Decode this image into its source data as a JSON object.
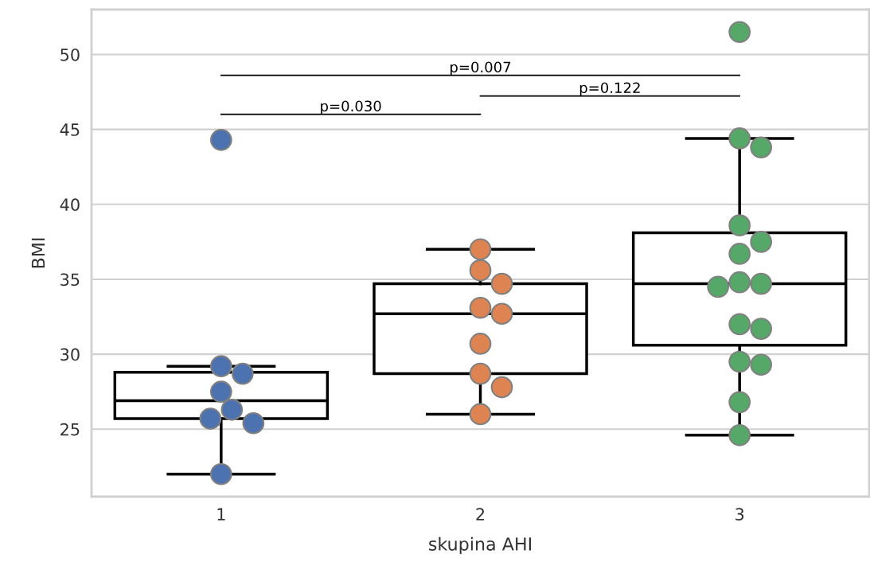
{
  "chart_data": {
    "type": "box",
    "xlabel": "skupina AHI",
    "ylabel": "BMI",
    "categories": [
      "1",
      "2",
      "3"
    ],
    "boxes": [
      {
        "low": 22.0,
        "q1": 25.7,
        "median": 26.9,
        "q3": 28.8,
        "high": 29.2
      },
      {
        "low": 26.0,
        "q1": 28.7,
        "median": 32.7,
        "q3": 34.7,
        "high": 37.0
      },
      {
        "low": 24.6,
        "q1": 30.6,
        "median": 34.7,
        "q3": 38.1,
        "high": 44.4
      }
    ],
    "series": [
      {
        "type": "scatter",
        "color": "#4c72b0",
        "x": [
          "1",
          "1",
          "1",
          "1",
          "1",
          "1",
          "1",
          "1"
        ],
        "values": [
          44.3,
          29.2,
          28.7,
          27.5,
          26.3,
          25.7,
          25.4,
          22.0
        ]
      },
      {
        "type": "scatter",
        "color": "#dd8452",
        "x": [
          "2",
          "2",
          "2",
          "2",
          "2",
          "2",
          "2",
          "2",
          "2"
        ],
        "values": [
          37.0,
          35.6,
          34.7,
          33.1,
          32.7,
          30.7,
          28.7,
          27.8,
          26.0
        ]
      },
      {
        "type": "scatter",
        "color": "#55a868",
        "x": [
          "3",
          "3",
          "3",
          "3",
          "3",
          "3",
          "3",
          "3",
          "3",
          "3",
          "3",
          "3",
          "3",
          "3",
          "3"
        ],
        "values": [
          51.5,
          44.4,
          43.8,
          38.6,
          37.5,
          36.7,
          34.8,
          34.7,
          34.5,
          32.0,
          31.7,
          29.5,
          29.3,
          26.8,
          24.6
        ]
      }
    ],
    "annotations": [
      "p=0.030",
      "p=0.122",
      "p=0.007"
    ],
    "ylim": [
      20.5,
      53.0
    ],
    "yticks": [
      25,
      30,
      35,
      40,
      45,
      50
    ],
    "grid": "y",
    "legend": false,
    "marker": "circle"
  }
}
